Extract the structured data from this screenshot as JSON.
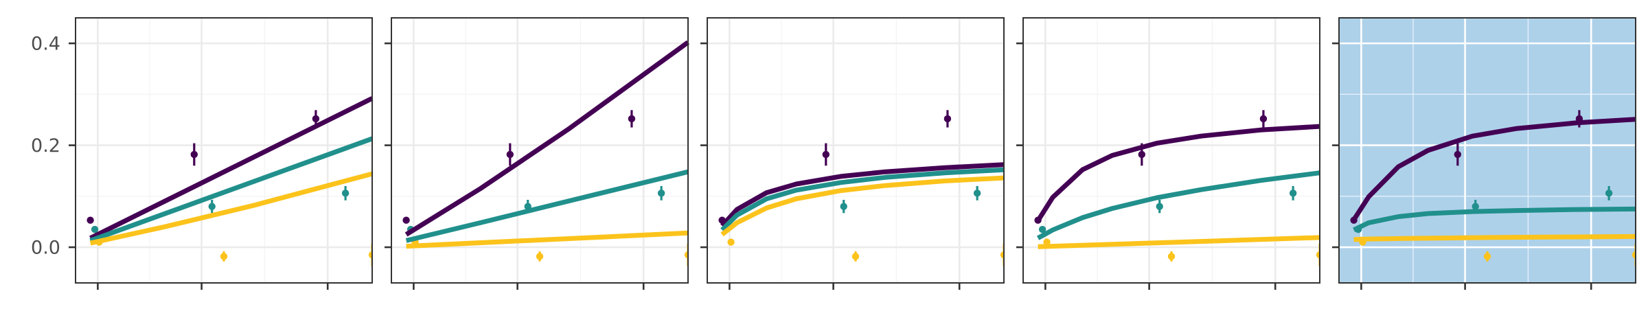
{
  "chart_data": {
    "type": "line",
    "title": "",
    "xlabel": "",
    "ylabel": "",
    "panel_count": 5,
    "xlim": [
      0,
      1
    ],
    "ylim": [
      -0.07,
      0.45
    ],
    "y_ticks": [
      {
        "value": 0.0,
        "label": "0.0"
      },
      {
        "value": 0.2,
        "label": "0.2"
      },
      {
        "value": 0.4,
        "label": "0.4"
      }
    ],
    "x_ticks": [
      0.075,
      0.425,
      0.85
    ],
    "grid": true,
    "legend": "none",
    "series_colors": {
      "A": "#440154",
      "B": "#21908c",
      "C": "#fbc31b"
    },
    "panel_bg": "#ffffff",
    "highlight_bg": "#aed1ea",
    "highlight_panel": 4,
    "observations": [
      {
        "series": "A",
        "points": [
          {
            "x": 0.05,
            "y": 0.053,
            "err": 0.0
          },
          {
            "x": 0.4,
            "y": 0.182,
            "err": 0.022
          },
          {
            "x": 0.81,
            "y": 0.252,
            "err": 0.017
          }
        ]
      },
      {
        "series": "B",
        "points": [
          {
            "x": 0.065,
            "y": 0.035,
            "err": 0.0
          },
          {
            "x": 0.46,
            "y": 0.08,
            "err": 0.013
          },
          {
            "x": 0.91,
            "y": 0.106,
            "err": 0.014
          }
        ]
      },
      {
        "series": "C",
        "points": [
          {
            "x": 0.08,
            "y": 0.01,
            "err": 0.0
          },
          {
            "x": 0.5,
            "y": -0.018,
            "err": 0.01
          },
          {
            "x": 1.0,
            "y": -0.015,
            "err": 0.022
          }
        ]
      }
    ],
    "panels": [
      {
        "series": [
          {
            "key": "A",
            "x": [
              0.05,
              1.0
            ],
            "y": [
              0.018,
              0.292
            ]
          },
          {
            "key": "B",
            "x": [
              0.05,
              1.0
            ],
            "y": [
              0.013,
              0.213
            ]
          },
          {
            "key": "C",
            "x": [
              0.05,
              0.3,
              0.6,
              1.0
            ],
            "y": [
              0.008,
              0.04,
              0.082,
              0.144
            ]
          }
        ]
      },
      {
        "series": [
          {
            "key": "A",
            "x": [
              0.05,
              0.3,
              0.6,
              1.0
            ],
            "y": [
              0.025,
              0.115,
              0.233,
              0.402
            ]
          },
          {
            "key": "B",
            "x": [
              0.05,
              0.3,
              0.6,
              1.0
            ],
            "y": [
              0.013,
              0.048,
              0.091,
              0.148
            ]
          },
          {
            "key": "C",
            "x": [
              0.05,
              1.0
            ],
            "y": [
              0.002,
              0.028
            ]
          }
        ]
      },
      {
        "series": [
          {
            "key": "A",
            "x": [
              0.05,
              0.1,
              0.2,
              0.3,
              0.45,
              0.6,
              0.8,
              1.0
            ],
            "y": [
              0.042,
              0.074,
              0.107,
              0.124,
              0.139,
              0.148,
              0.156,
              0.162
            ]
          },
          {
            "key": "B",
            "x": [
              0.05,
              0.1,
              0.2,
              0.3,
              0.45,
              0.6,
              0.8,
              1.0
            ],
            "y": [
              0.034,
              0.063,
              0.095,
              0.112,
              0.127,
              0.137,
              0.146,
              0.152
            ]
          },
          {
            "key": "C",
            "x": [
              0.05,
              0.1,
              0.2,
              0.3,
              0.45,
              0.6,
              0.8,
              1.0
            ],
            "y": [
              0.025,
              0.048,
              0.077,
              0.095,
              0.111,
              0.121,
              0.13,
              0.136
            ]
          }
        ]
      },
      {
        "series": [
          {
            "key": "A",
            "x": [
              0.05,
              0.1,
              0.2,
              0.3,
              0.45,
              0.6,
              0.8,
              1.0
            ],
            "y": [
              0.052,
              0.098,
              0.152,
              0.18,
              0.204,
              0.218,
              0.23,
              0.237
            ]
          },
          {
            "key": "B",
            "x": [
              0.05,
              0.1,
              0.2,
              0.3,
              0.45,
              0.6,
              0.8,
              1.0
            ],
            "y": [
              0.018,
              0.034,
              0.058,
              0.076,
              0.097,
              0.113,
              0.131,
              0.146
            ]
          },
          {
            "key": "C",
            "x": [
              0.05,
              1.0
            ],
            "y": [
              0.001,
              0.019
            ]
          }
        ]
      },
      {
        "series": [
          {
            "key": "A",
            "x": [
              0.05,
              0.1,
              0.2,
              0.3,
              0.45,
              0.6,
              0.8,
              1.0
            ],
            "y": [
              0.054,
              0.099,
              0.158,
              0.19,
              0.218,
              0.233,
              0.244,
              0.251
            ]
          },
          {
            "key": "B",
            "x": [
              0.05,
              0.1,
              0.2,
              0.3,
              0.45,
              0.6,
              0.8,
              1.0
            ],
            "y": [
              0.034,
              0.048,
              0.06,
              0.066,
              0.07,
              0.072,
              0.074,
              0.075
            ]
          },
          {
            "key": "C",
            "x": [
              0.05,
              0.08,
              0.2,
              0.5,
              1.0
            ],
            "y": [
              0.015,
              0.016,
              0.017,
              0.019,
              0.021
            ]
          }
        ]
      }
    ]
  }
}
